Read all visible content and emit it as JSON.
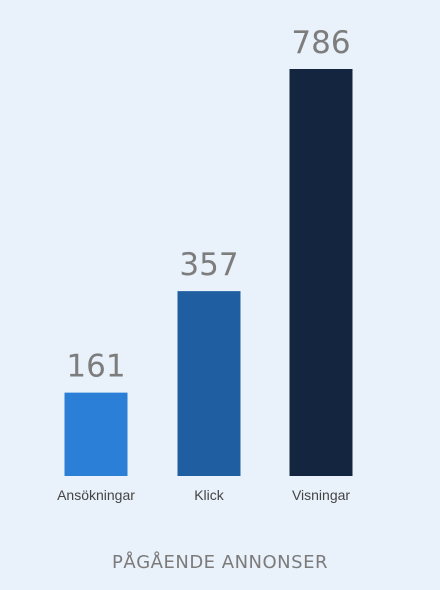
{
  "chart_data": {
    "type": "bar",
    "title": "PÅGÅENDE ANNONSER",
    "categories": [
      "Ansökningar",
      "Klick",
      "Visningar"
    ],
    "values": [
      161,
      357,
      786
    ],
    "colors": [
      "#2b7fd6",
      "#1f5fa1",
      "#13253f"
    ],
    "ylim": [
      0,
      800
    ],
    "grid": false,
    "legend": "none"
  }
}
